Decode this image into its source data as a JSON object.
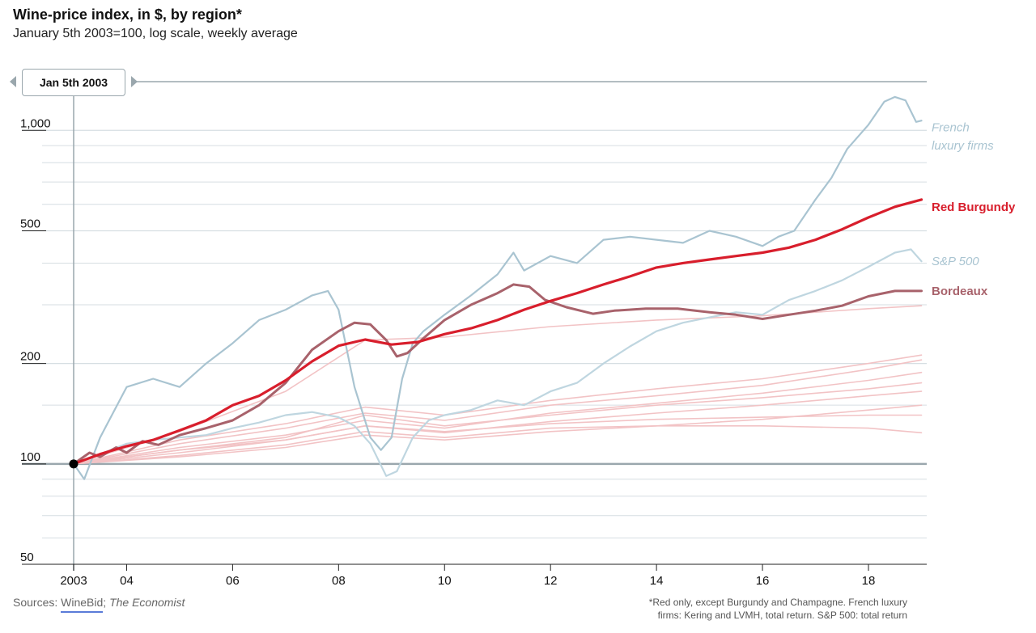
{
  "header": {
    "title": "Wine-price index, in $, by region*",
    "subtitle": "January 5th 2003=100, log scale, weekly average"
  },
  "slider": {
    "label": "Jan 5th 2003"
  },
  "footer": {
    "sources_label": "Sources:",
    "source_1": "WineBid",
    "source_sep": ";",
    "source_2": "The Economist",
    "note_line_1": "*Red only, except Burgundy and Champagne.   French luxury",
    "note_line_2": "firms: Kering and LVMH, total return. S&P 500: total return"
  },
  "colors": {
    "red_burgundy": "#d81e2c",
    "bordeaux": "#a8626b",
    "french_luxury": "#a9c4d1",
    "sp500": "#bfd6e0",
    "other_regions": "#f2c3c5",
    "grid": "#d6dee2",
    "axis": "#9aa7ad"
  },
  "chart_data": {
    "type": "line",
    "title": "Wine-price index, in $, by region*",
    "subtitle": "January 5th 2003=100, log scale, weekly average",
    "y_scale": "log",
    "ylim": [
      50,
      1400
    ],
    "xlim": [
      2003.0,
      2019.1
    ],
    "y_ticks": [
      {
        "value": 1000,
        "label": "1,000"
      },
      {
        "value": 500,
        "label": "500"
      },
      {
        "value": 200,
        "label": "200"
      },
      {
        "value": 100,
        "label": "100"
      },
      {
        "value": 50,
        "label": "50"
      }
    ],
    "x_ticks": [
      {
        "value": 2003,
        "label": "2003"
      },
      {
        "value": 2004,
        "label": "04"
      },
      {
        "value": 2006,
        "label": "06"
      },
      {
        "value": 2008,
        "label": "08"
      },
      {
        "value": 2010,
        "label": "10"
      },
      {
        "value": 2012,
        "label": "12"
      },
      {
        "value": 2014,
        "label": "14"
      },
      {
        "value": 2016,
        "label": "16"
      },
      {
        "value": 2018,
        "label": "18"
      }
    ],
    "series": [
      {
        "name": "French luxury firms",
        "x": [
          2003.0,
          2003.2,
          2003.5,
          2004.0,
          2004.5,
          2005.0,
          2005.5,
          2006.0,
          2006.5,
          2007.0,
          2007.5,
          2007.8,
          2008.0,
          2008.3,
          2008.6,
          2008.8,
          2009.0,
          2009.2,
          2009.4,
          2009.6,
          2010.0,
          2010.5,
          2011.0,
          2011.3,
          2011.5,
          2012.0,
          2012.5,
          2013.0,
          2013.5,
          2014.0,
          2014.5,
          2015.0,
          2015.5,
          2016.0,
          2016.3,
          2016.6,
          2017.0,
          2017.3,
          2017.6,
          2018.0,
          2018.3,
          2018.5,
          2018.7,
          2018.9,
          2019.0
        ],
        "y": [
          100,
          90,
          120,
          170,
          180,
          170,
          200,
          230,
          270,
          290,
          320,
          330,
          290,
          170,
          120,
          110,
          120,
          180,
          230,
          250,
          280,
          320,
          370,
          430,
          380,
          420,
          400,
          470,
          480,
          470,
          460,
          500,
          480,
          450,
          480,
          500,
          620,
          720,
          880,
          1040,
          1220,
          1260,
          1230,
          1060,
          1070
        ]
      },
      {
        "name": "Red Burgundy",
        "x": [
          2003.0,
          2003.5,
          2004.0,
          2004.5,
          2005.0,
          2005.5,
          2006.0,
          2006.5,
          2007.0,
          2007.5,
          2008.0,
          2008.5,
          2009.0,
          2009.5,
          2010.0,
          2010.5,
          2011.0,
          2011.5,
          2012.0,
          2012.5,
          2013.0,
          2013.5,
          2014.0,
          2014.5,
          2015.0,
          2015.5,
          2016.0,
          2016.5,
          2017.0,
          2017.5,
          2018.0,
          2018.5,
          2019.0
        ],
        "y": [
          100,
          107,
          113,
          118,
          126,
          135,
          150,
          160,
          178,
          203,
          226,
          236,
          228,
          232,
          245,
          255,
          270,
          290,
          308,
          325,
          345,
          365,
          388,
          400,
          410,
          420,
          430,
          445,
          470,
          505,
          548,
          590,
          620
        ]
      },
      {
        "name": "S&P 500",
        "x": [
          2003.0,
          2003.5,
          2004.0,
          2004.5,
          2005.0,
          2005.5,
          2006.0,
          2006.5,
          2007.0,
          2007.5,
          2008.0,
          2008.3,
          2008.6,
          2008.9,
          2009.1,
          2009.4,
          2009.7,
          2010.0,
          2010.5,
          2011.0,
          2011.5,
          2012.0,
          2012.5,
          2013.0,
          2013.5,
          2014.0,
          2014.5,
          2015.0,
          2015.5,
          2016.0,
          2016.5,
          2017.0,
          2017.5,
          2018.0,
          2018.5,
          2018.8,
          2019.0
        ],
        "y": [
          100,
          107,
          115,
          118,
          120,
          122,
          128,
          133,
          140,
          143,
          138,
          130,
          115,
          92,
          95,
          120,
          135,
          140,
          145,
          155,
          150,
          165,
          175,
          200,
          225,
          250,
          265,
          275,
          285,
          280,
          310,
          330,
          355,
          390,
          430,
          440,
          405
        ]
      },
      {
        "name": "Bordeaux",
        "x": [
          2003.0,
          2003.3,
          2003.5,
          2003.8,
          2004.0,
          2004.3,
          2004.6,
          2005.0,
          2005.5,
          2006.0,
          2006.5,
          2007.0,
          2007.5,
          2008.0,
          2008.3,
          2008.6,
          2008.9,
          2009.1,
          2009.3,
          2009.6,
          2010.0,
          2010.5,
          2011.0,
          2011.3,
          2011.6,
          2011.9,
          2012.3,
          2012.8,
          2013.2,
          2013.8,
          2014.4,
          2015.0,
          2015.5,
          2016.0,
          2016.5,
          2017.0,
          2017.5,
          2018.0,
          2018.5,
          2019.0
        ],
        "y": [
          100,
          108,
          105,
          112,
          108,
          117,
          114,
          122,
          128,
          135,
          150,
          175,
          220,
          250,
          265,
          262,
          235,
          210,
          215,
          238,
          270,
          300,
          325,
          345,
          340,
          310,
          295,
          282,
          288,
          292,
          292,
          285,
          280,
          272,
          280,
          288,
          298,
          318,
          330,
          330
        ]
      },
      {
        "name": "",
        "style": "other",
        "x": [
          2003.0,
          2005.0,
          2007.0,
          2008.5,
          2010.0,
          2012.0,
          2014.0,
          2016.0,
          2018.0,
          2019.0
        ],
        "y": [
          100,
          125,
          165,
          235,
          240,
          258,
          270,
          278,
          292,
          298
        ]
      },
      {
        "name": "",
        "style": "other",
        "x": [
          2003.0,
          2005.0,
          2007.0,
          2008.5,
          2010.0,
          2012.0,
          2014.0,
          2016.0,
          2018.0,
          2019.0
        ],
        "y": [
          100,
          118,
          132,
          148,
          140,
          155,
          168,
          180,
          200,
          212
        ]
      },
      {
        "name": "",
        "style": "other",
        "x": [
          2003.0,
          2005.0,
          2007.0,
          2008.5,
          2010.0,
          2012.0,
          2014.0,
          2016.0,
          2018.0,
          2019.0
        ],
        "y": [
          100,
          115,
          128,
          142,
          135,
          150,
          160,
          172,
          192,
          205
        ]
      },
      {
        "name": "",
        "style": "other",
        "x": [
          2003.0,
          2005.0,
          2007.0,
          2008.5,
          2010.0,
          2012.0,
          2014.0,
          2016.0,
          2018.0,
          2019.0
        ],
        "y": [
          100,
          112,
          122,
          135,
          128,
          142,
          152,
          163,
          178,
          188
        ]
      },
      {
        "name": "",
        "style": "other",
        "x": [
          2003.0,
          2005.0,
          2007.0,
          2008.5,
          2010.0,
          2012.0,
          2014.0,
          2016.0,
          2018.0,
          2019.0
        ],
        "y": [
          100,
          110,
          120,
          140,
          130,
          140,
          150,
          158,
          168,
          175
        ]
      },
      {
        "name": "",
        "style": "other",
        "x": [
          2003.0,
          2005.0,
          2007.0,
          2008.5,
          2010.0,
          2012.0,
          2014.0,
          2016.0,
          2018.0,
          2019.0
        ],
        "y": [
          100,
          108,
          118,
          130,
          124,
          134,
          142,
          150,
          160,
          165
        ]
      },
      {
        "name": "",
        "style": "other",
        "x": [
          2003.0,
          2005.0,
          2007.0,
          2008.5,
          2010.0,
          2012.0,
          2014.0,
          2016.0,
          2018.0,
          2019.0
        ],
        "y": [
          100,
          105,
          112,
          122,
          118,
          125,
          130,
          136,
          145,
          150
        ]
      },
      {
        "name": "",
        "style": "other",
        "x": [
          2003.0,
          2005.0,
          2007.0,
          2008.5,
          2010.0,
          2012.0,
          2014.0,
          2016.0,
          2018.0,
          2019.0
        ],
        "y": [
          100,
          110,
          118,
          130,
          125,
          132,
          136,
          138,
          140,
          140
        ]
      },
      {
        "name": "",
        "style": "other",
        "x": [
          2003.0,
          2005.0,
          2007.0,
          2008.5,
          2010.0,
          2012.0,
          2014.0,
          2016.0,
          2018.0,
          2019.0
        ],
        "y": [
          100,
          106,
          114,
          125,
          120,
          128,
          130,
          130,
          128,
          124
        ]
      }
    ],
    "labels": [
      {
        "text": "French",
        "series": "French luxury firms",
        "style": "italic",
        "y": 1020
      },
      {
        "text": "luxury firms",
        "series": "French luxury firms",
        "style": "italic",
        "y": 900
      },
      {
        "text": "Red Burgundy",
        "series": "Red Burgundy",
        "style": "bold",
        "y": 590
      },
      {
        "text": "S&P 500",
        "series": "S&P 500",
        "style": "italic",
        "y": 405
      },
      {
        "text": "Bordeaux",
        "series": "Bordeaux",
        "style": "bold",
        "y": 330
      }
    ],
    "start_marker": {
      "x": 2003.0,
      "y": 100
    },
    "legend": "none",
    "grid": true
  }
}
